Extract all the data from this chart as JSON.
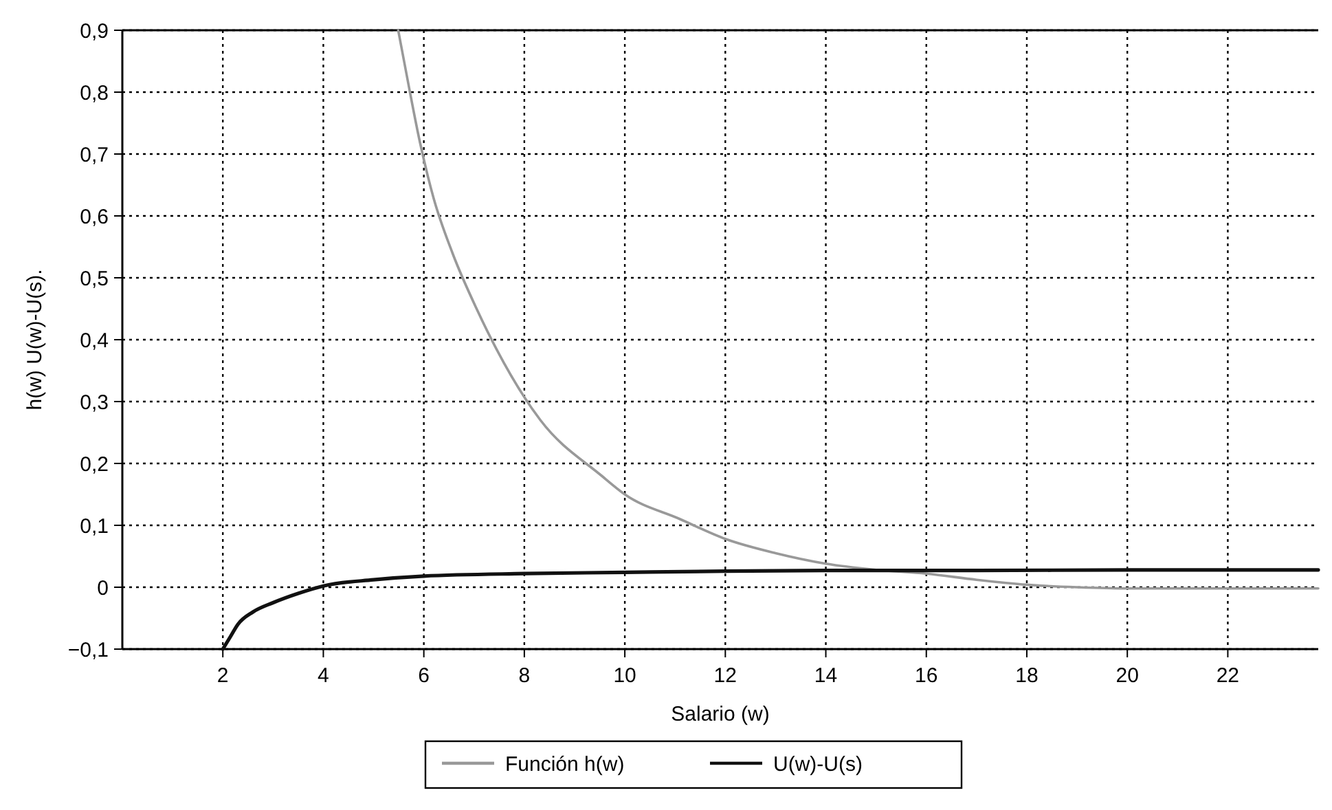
{
  "chart_data": {
    "type": "line",
    "xlabel": "Salario (w)",
    "ylabel": "h(w) U(w)-U(s).",
    "xlim": [
      0,
      23.8
    ],
    "xticks": [
      2,
      4,
      6,
      8,
      10,
      12,
      14,
      16,
      18,
      20,
      22
    ],
    "ylim": [
      -0.1,
      0.9
    ],
    "yticks": [
      {
        "value": -0.1,
        "label": "−0,1"
      },
      0,
      {
        "value": 0.1,
        "label": "0,1"
      },
      {
        "value": 0.2,
        "label": "0,2"
      },
      {
        "value": 0.3,
        "label": "0,3"
      },
      {
        "value": 0.4,
        "label": "0,4"
      },
      {
        "value": 0.5,
        "label": "0,5"
      },
      {
        "value": 0.6,
        "label": "0,6"
      },
      {
        "value": 0.7,
        "label": "0,7"
      },
      {
        "value": 0.8,
        "label": "0,8"
      },
      {
        "value": 0.9,
        "label": "0,9"
      }
    ],
    "grid": true,
    "legend": "bottom",
    "line_style": "solid",
    "series": [
      {
        "name": "Función h(w)",
        "color": "#999999",
        "x": [
          5.49,
          5.7,
          5.92,
          6.19,
          6.57,
          7.05,
          8.32,
          9.54,
          10,
          11.1,
          12,
          13,
          14,
          15,
          16,
          17,
          18,
          19,
          20,
          22,
          23.8
        ],
        "values": [
          0.9,
          0.81,
          0.72,
          0.63,
          0.54,
          0.45,
          0.27,
          0.18,
          0.15,
          0.11,
          0.078,
          0.055,
          0.038,
          0.028,
          0.022,
          0.012,
          0.004,
          0.0,
          -0.002,
          -0.002,
          -0.002
        ]
      },
      {
        "name": "U(w)-U(s)",
        "color": "#111111",
        "x": [
          2,
          2.15,
          2.3,
          2.6,
          3,
          3.5,
          4,
          5,
          6,
          8,
          10,
          12,
          14,
          17,
          20,
          23.8
        ],
        "values": [
          -0.1,
          -0.08,
          -0.06,
          -0.04,
          -0.025,
          -0.01,
          0.002,
          0.012,
          0.018,
          0.022,
          0.024,
          0.026,
          0.027,
          0.027,
          0.028,
          0.028
        ]
      }
    ]
  }
}
